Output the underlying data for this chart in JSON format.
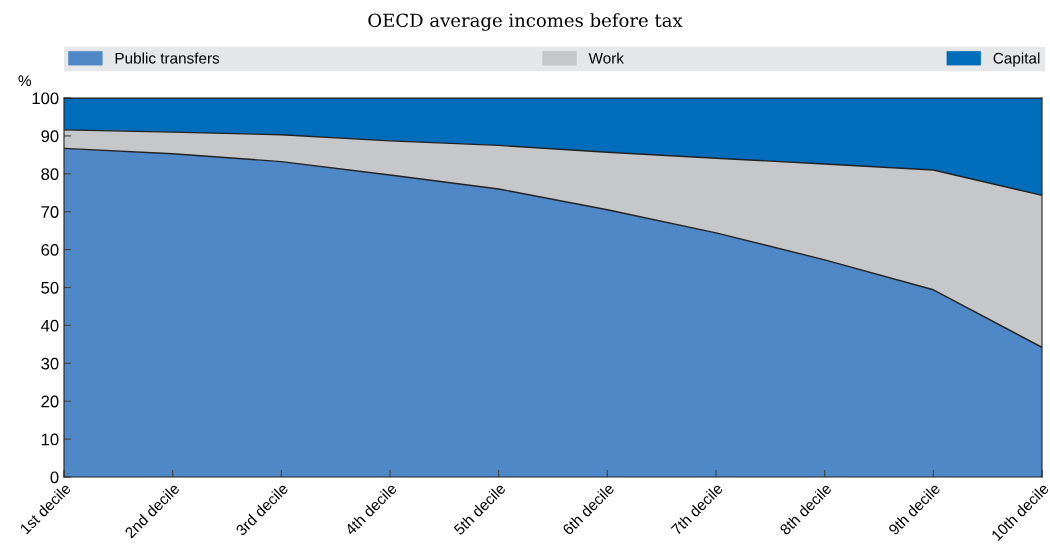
{
  "chart_data": {
    "type": "area",
    "stacked": true,
    "subtitle": "OECD average incomes before tax",
    "ylabel": "%",
    "categories": [
      "1st decile",
      "2nd decile",
      "3rd decile",
      "4th decile",
      "5th decile",
      "6th decile",
      "7th decile",
      "8th decile",
      "9th decile",
      "10th decile"
    ],
    "series": [
      {
        "name": "Public transfers",
        "color": "#4f88c6",
        "values": [
          86.7,
          85.3,
          83.2,
          79.7,
          76.0,
          70.5,
          64.4,
          57.3,
          49.4,
          34.2
        ]
      },
      {
        "name": "Work",
        "color": "#c6c7c9",
        "values": [
          4.9,
          5.7,
          7.1,
          9.0,
          11.5,
          15.2,
          19.7,
          25.3,
          31.6,
          40.1
        ]
      },
      {
        "name": "Capital",
        "color": "#006dba",
        "values": [
          8.4,
          9.0,
          9.7,
          11.3,
          12.5,
          14.3,
          15.9,
          17.4,
          19.0,
          25.7
        ]
      }
    ],
    "ylim": [
      0,
      100
    ],
    "yticks": [
      0,
      10,
      20,
      30,
      40,
      50,
      60,
      70,
      80,
      90,
      100
    ],
    "grid": false,
    "legend": "top"
  }
}
